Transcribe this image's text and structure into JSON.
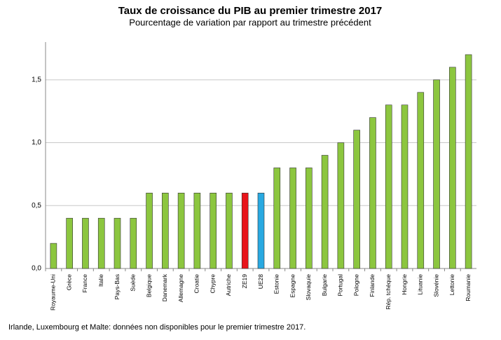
{
  "chart_data": {
    "type": "bar",
    "title": "Taux de croissance du PIB au premier trimestre 2017",
    "subtitle": "Pourcentage de variation par rapport au trimestre précédent",
    "footnote": "Irlande, Luxembourg et Malte: données non disponibles pour le premier trimestre 2017.",
    "categories": [
      "Royaume-Uni",
      "Grèce",
      "France",
      "Italie",
      "Pays-Bas",
      "Suède",
      "Belgique",
      "Danemark",
      "Allemagne",
      "Croatie",
      "Chypre",
      "Autriche",
      "ZE19",
      "UE28",
      "Estonie",
      "Espagne",
      "Slovaquie",
      "Bulgarie",
      "Portugal",
      "Pologne",
      "Finlande",
      "Rép. tchèque",
      "Hongrie",
      "Lituanie",
      "Slovénie",
      "Lettonie",
      "Roumanie"
    ],
    "values": [
      0.2,
      0.4,
      0.4,
      0.4,
      0.4,
      0.4,
      0.6,
      0.6,
      0.6,
      0.6,
      0.6,
      0.6,
      0.6,
      0.6,
      0.8,
      0.8,
      0.8,
      0.9,
      1.0,
      1.1,
      1.2,
      1.3,
      1.3,
      1.4,
      1.5,
      1.6,
      1.7
    ],
    "colors": [
      "#8cc63f",
      "#8cc63f",
      "#8cc63f",
      "#8cc63f",
      "#8cc63f",
      "#8cc63f",
      "#8cc63f",
      "#8cc63f",
      "#8cc63f",
      "#8cc63f",
      "#8cc63f",
      "#8cc63f",
      "#e8141b",
      "#29a9e1",
      "#8cc63f",
      "#8cc63f",
      "#8cc63f",
      "#8cc63f",
      "#8cc63f",
      "#8cc63f",
      "#8cc63f",
      "#8cc63f",
      "#8cc63f",
      "#8cc63f",
      "#8cc63f",
      "#8cc63f",
      "#8cc63f"
    ],
    "ylim": [
      0,
      1.8
    ],
    "yticks": [
      {
        "value": 0,
        "label": "0,0"
      },
      {
        "value": 0.5,
        "label": "0,5"
      },
      {
        "value": 1,
        "label": "1,0"
      },
      {
        "value": 1.5,
        "label": "1,5"
      }
    ],
    "grid": true
  }
}
